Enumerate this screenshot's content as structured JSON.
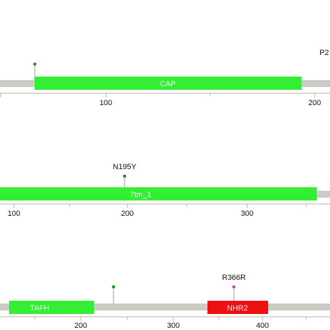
{
  "colors": {
    "backbone": "#c8ccc4",
    "domain_green": "#33ee33",
    "domain_red": "#ee1111",
    "domain_text": "#eaffea",
    "lollipop_green": "#1a9a1a",
    "lollipop_magenta": "#c040c0",
    "stem": "#9a9a9a",
    "axis": "#b0b0b0",
    "text": "#111111"
  },
  "tracks": [
    {
      "name": "track-1",
      "domains": [
        {
          "label": "CAP",
          "color": "#33ee33"
        }
      ],
      "mutations": [
        {
          "label": "",
          "color": "#1a9a1a"
        },
        {
          "label": "P2",
          "color": "#1a9a1a"
        }
      ],
      "ticks": [
        "100",
        "200"
      ]
    },
    {
      "name": "track-2",
      "domains": [
        {
          "label": "7tm_1",
          "color": "#33ee33"
        }
      ],
      "mutations": [
        {
          "label": "N195Y",
          "color": "#1a9a1a"
        }
      ],
      "ticks": [
        "100",
        "200",
        "300"
      ]
    },
    {
      "name": "track-3",
      "domains": [
        {
          "label": "TAFH",
          "color": "#33ee33"
        },
        {
          "label": "NHR2",
          "color": "#ee1111"
        }
      ],
      "mutations": [
        {
          "label": "",
          "color": "#1a9a1a"
        },
        {
          "label": "R366R",
          "color": "#c040c0"
        }
      ],
      "ticks": [
        "200",
        "300",
        "400"
      ]
    }
  ]
}
